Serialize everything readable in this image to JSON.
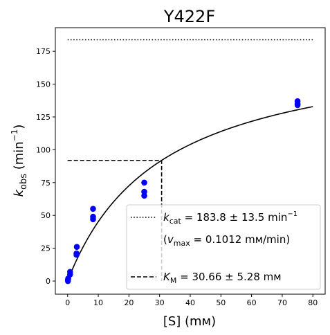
{
  "chart_data": {
    "type": "scatter",
    "title": "Y422F",
    "xlabel": "[S] (mм)",
    "ylabel": "k_obs (min⁻¹)",
    "ylabel_main": "k",
    "ylabel_sub": "obs",
    "ylabel_rest": " (min",
    "ylabel_sup": "−1",
    "ylabel_close": ")",
    "xlim": [
      -4,
      84
    ],
    "ylim": [
      -10,
      193
    ],
    "xticks": [
      0,
      10,
      20,
      30,
      40,
      50,
      60,
      70,
      80
    ],
    "yticks": [
      0,
      25,
      50,
      75,
      100,
      125,
      150,
      175
    ],
    "grid": false,
    "legend_position": "bottom-right",
    "point_color": "#0000ff",
    "series": [
      {
        "type": "scatter",
        "x": [
          0.1,
          0.1,
          0.2,
          0.8,
          0.8,
          2.9,
          2.9,
          3.0,
          8.3,
          8.3,
          8.3,
          25.0,
          25.0,
          25.0,
          75.0,
          75.0,
          75.0
        ],
        "y": [
          0,
          1,
          2,
          5,
          7,
          20,
          21,
          26,
          47,
          49,
          55,
          65,
          68,
          75,
          134,
          135,
          137
        ]
      },
      {
        "type": "line",
        "style": "solid",
        "function": "michaelis-menten",
        "vmax": 183.8,
        "km": 30.66,
        "x_range": [
          0,
          80
        ]
      },
      {
        "type": "line",
        "style": "dotted",
        "x": [
          0,
          80
        ],
        "y": [
          183.8,
          183.8
        ]
      },
      {
        "type": "line",
        "style": "dashed",
        "x": [
          0,
          30.66,
          30.66
        ],
        "y": [
          91.9,
          91.9,
          0
        ]
      }
    ],
    "legend": {
      "entry1_main": "k",
      "entry1_sub": "cat",
      "entry1_rest": " = 183.8 ± 13.5 min",
      "entry1_sup": "−1",
      "entry2_open": "(",
      "entry2_main": "v",
      "entry2_sub": "max",
      "entry2_rest": " = 0.1012 mм/min)",
      "entry3_main": "K",
      "entry3_sub": "M",
      "entry3_rest": " = 30.66 ± 5.28 mм"
    }
  }
}
